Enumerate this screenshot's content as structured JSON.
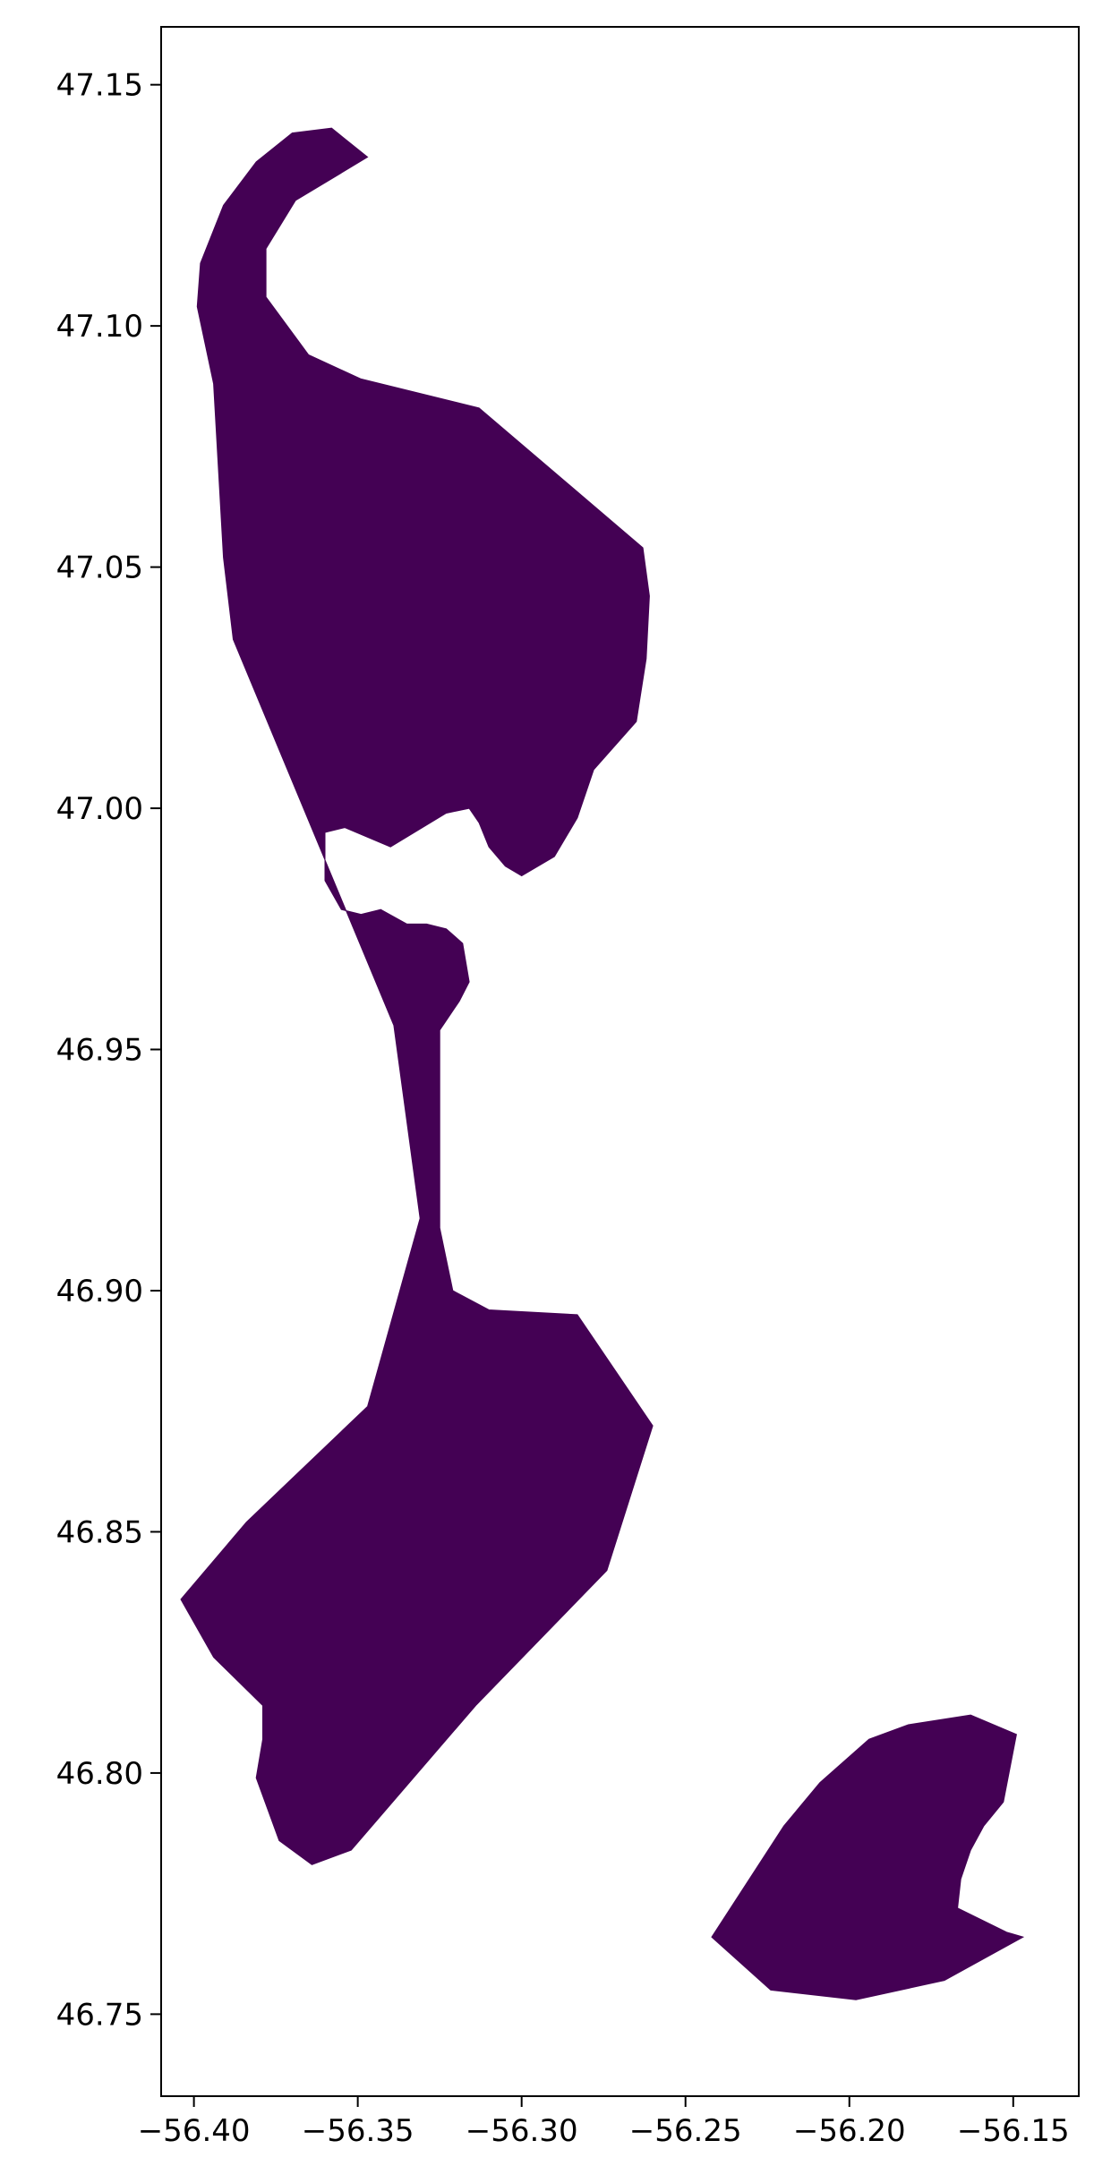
{
  "map": {
    "fill_color": "#440154",
    "background": "#ffffff",
    "frame_color": "#000000"
  },
  "chart_data": {
    "type": "map",
    "xlim": [
      -56.41,
      -56.13
    ],
    "ylim": [
      46.733,
      47.162
    ],
    "x_ticks": [
      {
        "value": -56.4,
        "label": "−56.40"
      },
      {
        "value": -56.35,
        "label": "−56.35"
      },
      {
        "value": -56.3,
        "label": "−56.30"
      },
      {
        "value": -56.25,
        "label": "−56.25"
      },
      {
        "value": -56.2,
        "label": "−56.20"
      },
      {
        "value": -56.15,
        "label": "−56.15"
      }
    ],
    "y_ticks": [
      {
        "value": 47.15,
        "label": "47.15"
      },
      {
        "value": 47.1,
        "label": "47.10"
      },
      {
        "value": 47.05,
        "label": "47.05"
      },
      {
        "value": 47.0,
        "label": "47.00"
      },
      {
        "value": 46.95,
        "label": "46.95"
      },
      {
        "value": 46.9,
        "label": "46.90"
      },
      {
        "value": 46.85,
        "label": "46.85"
      },
      {
        "value": 46.8,
        "label": "46.80"
      },
      {
        "value": 46.75,
        "label": "46.75"
      }
    ],
    "polygons": [
      {
        "id": "main-landmass",
        "coords": [
          [
            -56.347,
            47.135
          ],
          [
            -56.358,
            47.141
          ],
          [
            -56.37,
            47.14
          ],
          [
            -56.381,
            47.134
          ],
          [
            -56.391,
            47.125
          ],
          [
            -56.398,
            47.113
          ],
          [
            -56.399,
            47.104
          ],
          [
            -56.394,
            47.088
          ],
          [
            -56.391,
            47.052
          ],
          [
            -56.388,
            47.035
          ],
          [
            -56.339,
            46.955
          ],
          [
            -56.331,
            46.915
          ],
          [
            -56.347,
            46.876
          ],
          [
            -56.384,
            46.852
          ],
          [
            -56.404,
            46.836
          ],
          [
            -56.394,
            46.824
          ],
          [
            -56.379,
            46.814
          ],
          [
            -56.379,
            46.807
          ],
          [
            -56.381,
            46.799
          ],
          [
            -56.374,
            46.786
          ],
          [
            -56.364,
            46.781
          ],
          [
            -56.352,
            46.784
          ],
          [
            -56.314,
            46.814
          ],
          [
            -56.274,
            46.842
          ],
          [
            -56.26,
            46.872
          ],
          [
            -56.283,
            46.895
          ],
          [
            -56.31,
            46.896
          ],
          [
            -56.321,
            46.9
          ],
          [
            -56.325,
            46.913
          ],
          [
            -56.325,
            46.954
          ],
          [
            -56.319,
            46.96
          ],
          [
            -56.316,
            46.964
          ],
          [
            -56.318,
            46.972
          ],
          [
            -56.323,
            46.975
          ],
          [
            -56.329,
            46.976
          ],
          [
            -56.335,
            46.976
          ],
          [
            -56.343,
            46.979
          ],
          [
            -56.349,
            46.978
          ],
          [
            -56.355,
            46.979
          ],
          [
            -56.36,
            46.985
          ],
          [
            -56.36,
            46.995
          ],
          [
            -56.354,
            46.996
          ],
          [
            -56.34,
            46.992
          ],
          [
            -56.323,
            46.999
          ],
          [
            -56.316,
            47.0
          ],
          [
            -56.313,
            46.997
          ],
          [
            -56.31,
            46.992
          ],
          [
            -56.305,
            46.988
          ],
          [
            -56.3,
            46.986
          ],
          [
            -56.29,
            46.99
          ],
          [
            -56.283,
            46.998
          ],
          [
            -56.278,
            47.008
          ],
          [
            -56.265,
            47.018
          ],
          [
            -56.262,
            47.031
          ],
          [
            -56.261,
            47.044
          ],
          [
            -56.263,
            47.054
          ],
          [
            -56.313,
            47.083
          ],
          [
            -56.349,
            47.089
          ],
          [
            -56.365,
            47.094
          ],
          [
            -56.378,
            47.106
          ],
          [
            -56.378,
            47.116
          ],
          [
            -56.369,
            47.126
          ]
        ]
      },
      {
        "id": "southeast-island",
        "coords": [
          [
            -56.242,
            46.766
          ],
          [
            -56.224,
            46.755
          ],
          [
            -56.198,
            46.753
          ],
          [
            -56.171,
            46.757
          ],
          [
            -56.147,
            46.766
          ],
          [
            -56.152,
            46.767
          ],
          [
            -56.167,
            46.772
          ],
          [
            -56.166,
            46.778
          ],
          [
            -56.163,
            46.784
          ],
          [
            -56.159,
            46.789
          ],
          [
            -56.153,
            46.794
          ],
          [
            -56.149,
            46.808
          ],
          [
            -56.163,
            46.812
          ],
          [
            -56.182,
            46.81
          ],
          [
            -56.194,
            46.807
          ],
          [
            -56.209,
            46.798
          ],
          [
            -56.22,
            46.789
          ]
        ]
      }
    ]
  }
}
